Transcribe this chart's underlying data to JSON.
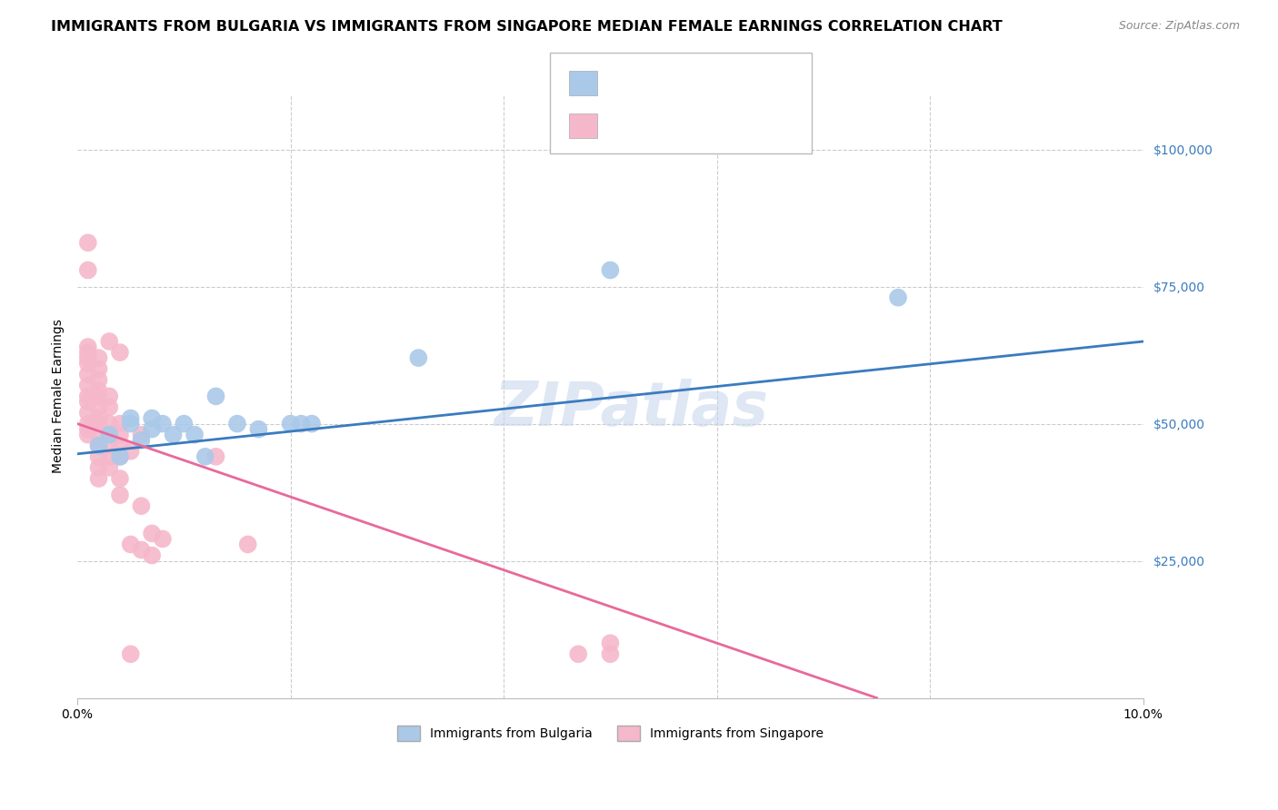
{
  "title": "IMMIGRANTS FROM BULGARIA VS IMMIGRANTS FROM SINGAPORE MEDIAN FEMALE EARNINGS CORRELATION CHART",
  "source": "Source: ZipAtlas.com",
  "ylabel": "Median Female Earnings",
  "ytick_labels": [
    "$25,000",
    "$50,000",
    "$75,000",
    "$100,000"
  ],
  "ytick_values": [
    25000,
    50000,
    75000,
    100000
  ],
  "ylim": [
    0,
    110000
  ],
  "xlim": [
    0.0,
    0.1
  ],
  "bulgaria_color": "#aac9e8",
  "singapore_color": "#f5b8cb",
  "bulgaria_line_color": "#3a7bbf",
  "singapore_line_color": "#e8699a",
  "r_value_color": "#3a7bbf",
  "r_value_color_neg": "#e8699a",
  "watermark": "ZIPatlas",
  "bulgaria_line": [
    0.0,
    44500,
    0.1,
    65000
  ],
  "singapore_line": [
    0.0,
    50000,
    0.075,
    0
  ],
  "bulgaria_points": [
    [
      0.002,
      46000
    ],
    [
      0.003,
      48000
    ],
    [
      0.004,
      44000
    ],
    [
      0.005,
      50000
    ],
    [
      0.005,
      51000
    ],
    [
      0.006,
      47000
    ],
    [
      0.007,
      49000
    ],
    [
      0.007,
      51000
    ],
    [
      0.008,
      50000
    ],
    [
      0.009,
      48000
    ],
    [
      0.01,
      50000
    ],
    [
      0.011,
      48000
    ],
    [
      0.012,
      44000
    ],
    [
      0.013,
      55000
    ],
    [
      0.015,
      50000
    ],
    [
      0.017,
      49000
    ],
    [
      0.02,
      50000
    ],
    [
      0.021,
      50000
    ],
    [
      0.022,
      50000
    ],
    [
      0.032,
      62000
    ],
    [
      0.05,
      78000
    ],
    [
      0.077,
      73000
    ]
  ],
  "singapore_points": [
    [
      0.001,
      83000
    ],
    [
      0.001,
      78000
    ],
    [
      0.001,
      64000
    ],
    [
      0.001,
      63000
    ],
    [
      0.001,
      62000
    ],
    [
      0.001,
      61000
    ],
    [
      0.001,
      59000
    ],
    [
      0.001,
      57000
    ],
    [
      0.001,
      55000
    ],
    [
      0.001,
      54000
    ],
    [
      0.001,
      52000
    ],
    [
      0.001,
      50000
    ],
    [
      0.001,
      49000
    ],
    [
      0.001,
      48000
    ],
    [
      0.002,
      62000
    ],
    [
      0.002,
      60000
    ],
    [
      0.002,
      58000
    ],
    [
      0.002,
      56000
    ],
    [
      0.002,
      55000
    ],
    [
      0.002,
      53000
    ],
    [
      0.002,
      51000
    ],
    [
      0.002,
      50000
    ],
    [
      0.002,
      48000
    ],
    [
      0.002,
      46000
    ],
    [
      0.002,
      44000
    ],
    [
      0.002,
      42000
    ],
    [
      0.002,
      40000
    ],
    [
      0.003,
      65000
    ],
    [
      0.003,
      55000
    ],
    [
      0.003,
      53000
    ],
    [
      0.003,
      50000
    ],
    [
      0.003,
      48000
    ],
    [
      0.003,
      46000
    ],
    [
      0.003,
      44000
    ],
    [
      0.003,
      42000
    ],
    [
      0.004,
      63000
    ],
    [
      0.004,
      50000
    ],
    [
      0.004,
      48000
    ],
    [
      0.004,
      46000
    ],
    [
      0.004,
      44000
    ],
    [
      0.004,
      40000
    ],
    [
      0.004,
      37000
    ],
    [
      0.005,
      28000
    ],
    [
      0.005,
      45000
    ],
    [
      0.005,
      8000
    ],
    [
      0.006,
      48000
    ],
    [
      0.006,
      35000
    ],
    [
      0.006,
      27000
    ],
    [
      0.007,
      30000
    ],
    [
      0.007,
      26000
    ],
    [
      0.008,
      29000
    ],
    [
      0.013,
      44000
    ],
    [
      0.016,
      28000
    ],
    [
      0.047,
      8000
    ],
    [
      0.05,
      10000
    ],
    [
      0.05,
      8000
    ]
  ],
  "grid_color": "#cccccc",
  "background_color": "#ffffff",
  "title_fontsize": 11.5,
  "source_fontsize": 9,
  "axis_label_fontsize": 10,
  "tick_label_fontsize": 10,
  "legend_fontsize": 12,
  "watermark_fontsize": 48,
  "watermark_color": "#c8d8ec",
  "watermark_alpha": 0.6
}
